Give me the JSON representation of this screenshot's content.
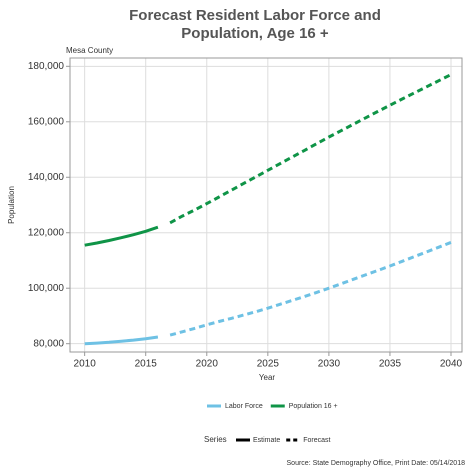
{
  "chart_data": {
    "type": "line",
    "title": [
      "Forecast Resident Labor Force and",
      "Population, Age 16 +"
    ],
    "subtitle": "Mesa County",
    "y_label": "Population",
    "x_label": "Year",
    "x": [
      2010,
      2011,
      2012,
      2013,
      2014,
      2015,
      2016,
      2017,
      2018,
      2019,
      2020,
      2021,
      2022,
      2023,
      2024,
      2025,
      2026,
      2027,
      2028,
      2029,
      2030,
      2031,
      2032,
      2033,
      2034,
      2035,
      2036,
      2037,
      2038,
      2039,
      2040
    ],
    "series": [
      {
        "name": "Labor Force",
        "color": "#6ec1e4",
        "values": [
          80000,
          80200,
          80500,
          80900,
          81300,
          81800,
          82400,
          83100,
          84300,
          85500,
          86800,
          88000,
          89100,
          90300,
          91500,
          92800,
          94200,
          95600,
          97000,
          98500,
          100000,
          101600,
          103200,
          104800,
          106400,
          108000,
          109700,
          111400,
          113100,
          114800,
          116500
        ]
      },
      {
        "name": "Population 16 +",
        "color": "#0f9447",
        "values": [
          115500,
          116300,
          117200,
          118200,
          119300,
          120500,
          122000,
          123600,
          126000,
          128200,
          130500,
          132900,
          135300,
          137700,
          140100,
          142500,
          144900,
          147300,
          149700,
          152100,
          154500,
          156800,
          159100,
          161400,
          163700,
          166000,
          168200,
          170400,
          172600,
          174800,
          177000
        ]
      }
    ],
    "forecast_from": 2017,
    "xlim": [
      2008.8,
      2040.9
    ],
    "ylim": [
      77000,
      183000
    ],
    "xticks": [
      2010,
      2015,
      2020,
      2025,
      2030,
      2035,
      2040
    ],
    "yticks": [
      {
        "value": 80000,
        "label": "80,000"
      },
      {
        "value": 100000,
        "label": "100,000"
      },
      {
        "value": 120000,
        "label": "120,000"
      },
      {
        "value": 140000,
        "label": "140,000"
      },
      {
        "value": 160000,
        "label": "160,000"
      },
      {
        "value": 180000,
        "label": "180,000"
      }
    ],
    "grid": true,
    "style_legend": {
      "title": "Series",
      "items": [
        "Estimate",
        "Forecast"
      ]
    },
    "source": "Source: State Demography Office, Print Date: 05/14/2018"
  }
}
